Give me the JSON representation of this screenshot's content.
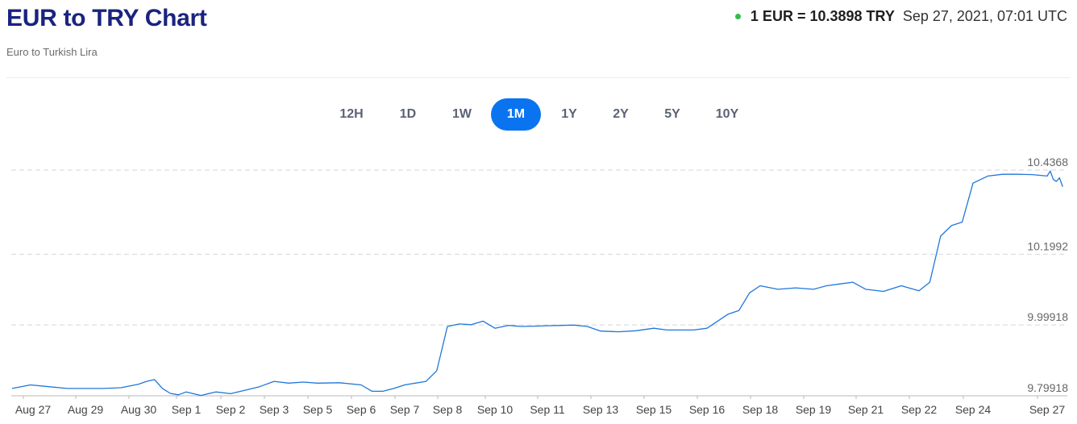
{
  "header": {
    "title": "EUR to TRY Chart",
    "subtitle": "Euro to Turkish Lira",
    "rate": "1 EUR = 10.3898 TRY",
    "timestamp": "Sep 27, 2021, 07:01 UTC",
    "live_color": "#2fbf4a"
  },
  "ranges": [
    {
      "label": "12H",
      "active": false
    },
    {
      "label": "1D",
      "active": false
    },
    {
      "label": "1W",
      "active": false
    },
    {
      "label": "1M",
      "active": true
    },
    {
      "label": "1Y",
      "active": false
    },
    {
      "label": "2Y",
      "active": false
    },
    {
      "label": "5Y",
      "active": false
    },
    {
      "label": "10Y",
      "active": false
    }
  ],
  "chart_data": {
    "type": "line",
    "title": "",
    "xlabel": "",
    "ylabel": "",
    "line_color": "#1f77d8",
    "grid": "dashed horizontal at y tick values",
    "y_ticks": [
      "10.4368",
      "10.1992",
      "9.99918",
      "9.79918"
    ],
    "ylim": [
      9.79918,
      10.4368
    ],
    "x_ticks": [
      "Aug 27",
      "Aug 29",
      "Aug 30",
      "Sep 1",
      "Sep 2",
      "Sep 3",
      "Sep 5",
      "Sep 6",
      "Sep 7",
      "Sep 8",
      "Sep 10",
      "Sep 11",
      "Sep 13",
      "Sep 15",
      "Sep 16",
      "Sep 18",
      "Sep 19",
      "Sep 21",
      "Sep 22",
      "Sep 24",
      "Sep 27"
    ],
    "series": [
      {
        "points": [
          [
            "Aug 27",
            9.82
          ],
          [
            "Aug 27",
            9.83
          ],
          [
            "Aug 27",
            9.825
          ],
          [
            "Aug 27",
            9.82
          ],
          [
            "Aug 29",
            9.82
          ],
          [
            "Aug 29",
            9.82
          ],
          [
            "Aug 29",
            9.822
          ],
          [
            "Aug 30",
            9.832
          ],
          [
            "Aug 30",
            9.84
          ],
          [
            "Aug 30",
            9.845
          ],
          [
            "Aug 30",
            9.82
          ],
          [
            "Aug 30",
            9.806
          ],
          [
            "Aug 30",
            9.802
          ],
          [
            "Sep 1",
            9.81
          ],
          [
            "Sep 1",
            9.8
          ],
          [
            "Sep 1",
            9.81
          ],
          [
            "Sep 2",
            9.805
          ],
          [
            "Sep 2",
            9.815
          ],
          [
            "Sep 2",
            9.825
          ],
          [
            "Sep 3",
            9.84
          ],
          [
            "Sep 3",
            9.835
          ],
          [
            "Sep 3",
            9.838
          ],
          [
            "Sep 5",
            9.835
          ],
          [
            "Sep 5",
            9.836
          ],
          [
            "Sep 6",
            9.83
          ],
          [
            "Sep 6",
            9.812
          ],
          [
            "Sep 6",
            9.812
          ],
          [
            "Sep 6",
            9.82
          ],
          [
            "Sep 7",
            9.83
          ],
          [
            "Sep 7",
            9.835
          ],
          [
            "Sep 7",
            9.84
          ],
          [
            "Sep 7",
            9.87
          ],
          [
            "Sep 8",
            9.995
          ],
          [
            "Sep 8",
            10.002
          ],
          [
            "Sep 8",
            10.0
          ],
          [
            "Sep 8",
            10.01
          ],
          [
            "Sep 10",
            9.99
          ],
          [
            "Sep 10",
            9.998
          ],
          [
            "Sep 10",
            9.995
          ],
          [
            "Sep 10",
            9.996
          ],
          [
            "Sep 11",
            9.997
          ],
          [
            "Sep 11",
            9.998
          ],
          [
            "Sep 11",
            9.999
          ],
          [
            "Sep 11",
            9.995
          ],
          [
            "Sep 13",
            9.982
          ],
          [
            "Sep 13",
            9.98
          ],
          [
            "Sep 13",
            9.983
          ],
          [
            "Sep 15",
            9.99
          ],
          [
            "Sep 15",
            9.985
          ],
          [
            "Sep 15",
            9.985
          ],
          [
            "Sep 15",
            9.985
          ],
          [
            "Sep 16",
            9.99
          ],
          [
            "Sep 16",
            10.01
          ],
          [
            "Sep 16",
            10.03
          ],
          [
            "Sep 16",
            10.04
          ],
          [
            "Sep 16",
            10.09
          ],
          [
            "Sep 18",
            10.11
          ],
          [
            "Sep 18",
            10.1
          ],
          [
            "Sep 18",
            10.104
          ],
          [
            "Sep 19",
            10.1
          ],
          [
            "Sep 19",
            10.11
          ],
          [
            "Sep 19",
            10.115
          ],
          [
            "Sep 19",
            10.12
          ],
          [
            "Sep 21",
            10.1
          ],
          [
            "Sep 21",
            10.094
          ],
          [
            "Sep 21",
            10.11
          ],
          [
            "Sep 22",
            10.096
          ],
          [
            "Sep 22",
            10.12
          ],
          [
            "Sep 22",
            10.25
          ],
          [
            "Sep 22",
            10.28
          ],
          [
            "Sep 22",
            10.29
          ],
          [
            "Sep 24",
            10.4
          ],
          [
            "Sep 24",
            10.42
          ],
          [
            "Sep 24",
            10.425
          ],
          [
            "Sep 24",
            10.425
          ],
          [
            "Sep 24",
            10.424
          ],
          [
            "Sep 27",
            10.42
          ],
          [
            "Sep 27",
            10.434
          ],
          [
            "Sep 27",
            10.41
          ],
          [
            "Sep 27",
            10.405
          ],
          [
            "Sep 27",
            10.415
          ],
          [
            "Sep 27",
            10.3898
          ]
        ]
      }
    ]
  }
}
